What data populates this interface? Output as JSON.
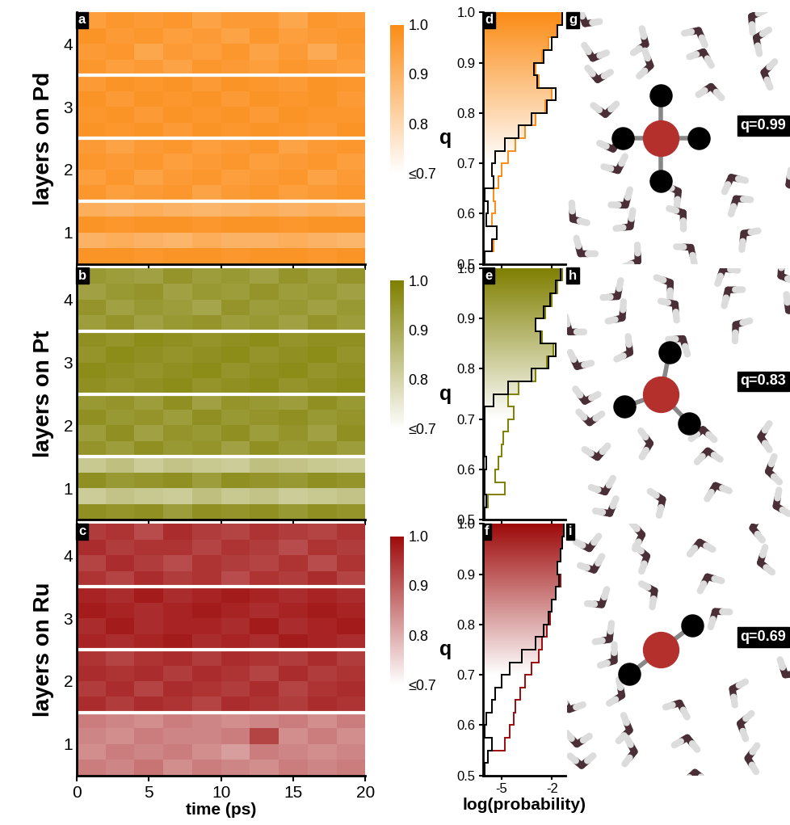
{
  "chart_data": [
    {
      "type": "heatmap",
      "panel": "a",
      "y_label": "layers on Pd",
      "color": "#fb8c16",
      "x_bins": [
        0,
        2,
        4,
        6,
        8,
        10,
        12,
        14,
        16,
        18,
        20
      ],
      "xlim": [
        0,
        20
      ],
      "xticks": [
        0,
        5,
        10,
        15,
        20
      ],
      "tick_labels": "y",
      "colorbar": {
        "range": [
          0.7,
          1.0
        ],
        "ticks": [
          {
            "value": 1.0,
            "label": "1.0"
          },
          {
            "value": 0.9,
            "label": "0.9"
          },
          {
            "value": 0.8,
            "label": "0.8"
          },
          {
            "value": 0.7,
            "label": "≤0.7"
          }
        ]
      },
      "layers": [
        {
          "label": "1",
          "cells": [
            [
              0.98,
              0.98,
              0.97,
              0.98,
              0.98,
              0.97,
              0.98,
              0.98,
              0.97,
              0.98
            ],
            [
              0.9,
              0.91,
              0.9,
              0.89,
              0.91,
              0.9,
              0.9,
              0.91,
              0.9,
              0.89
            ],
            [
              0.98,
              0.97,
              0.98,
              0.98,
              0.97,
              0.98,
              0.98,
              0.97,
              0.98,
              0.98
            ],
            [
              0.91,
              0.9,
              0.91,
              0.9,
              0.89,
              0.9,
              0.91,
              0.9,
              0.91,
              0.9
            ]
          ]
        },
        {
          "label": "2",
          "cells": [
            [
              0.97,
              0.95,
              0.96,
              0.97,
              0.94,
              0.96,
              0.97,
              0.95,
              0.96,
              0.97
            ],
            [
              0.95,
              0.97,
              0.94,
              0.96,
              0.97,
              0.95,
              0.96,
              0.97,
              0.94,
              0.96
            ],
            [
              0.97,
              0.96,
              0.97,
              0.95,
              0.96,
              0.97,
              0.95,
              0.96,
              0.97,
              0.95
            ],
            [
              0.96,
              0.94,
              0.96,
              0.97,
              0.95,
              0.96,
              0.97,
              0.94,
              0.96,
              0.97
            ]
          ]
        },
        {
          "label": "3",
          "cells": [
            [
              0.98,
              0.97,
              0.98,
              0.96,
              0.98,
              0.97,
              0.98,
              0.97,
              0.96,
              0.98
            ],
            [
              0.97,
              0.98,
              0.96,
              0.98,
              0.97,
              0.98,
              0.96,
              0.98,
              0.97,
              0.97
            ],
            [
              0.98,
              0.96,
              0.98,
              0.97,
              0.98,
              0.96,
              0.98,
              0.97,
              0.98,
              0.96
            ],
            [
              0.96,
              0.98,
              0.97,
              0.98,
              0.96,
              0.98,
              0.97,
              0.96,
              0.98,
              0.97
            ]
          ]
        },
        {
          "label": "4",
          "cells": [
            [
              0.97,
              0.95,
              0.96,
              0.94,
              0.97,
              0.96,
              0.95,
              0.97,
              0.96,
              0.95
            ],
            [
              0.96,
              0.97,
              0.93,
              0.96,
              0.95,
              0.97,
              0.94,
              0.96,
              0.92,
              0.96
            ],
            [
              0.98,
              0.96,
              0.97,
              0.95,
              0.96,
              0.94,
              0.97,
              0.95,
              0.96,
              0.97
            ],
            [
              0.95,
              0.97,
              0.96,
              0.97,
              0.94,
              0.96,
              0.96,
              0.93,
              0.97,
              0.96
            ]
          ]
        }
      ]
    },
    {
      "type": "heatmap",
      "panel": "b",
      "y_label": "layers on Pt",
      "color": "#7f7f00",
      "x_bins": [
        0,
        2,
        4,
        6,
        8,
        10,
        12,
        14,
        16,
        18,
        20
      ],
      "xlim": [
        0,
        20
      ],
      "xticks": [
        0,
        5,
        10,
        15,
        20
      ],
      "tick_labels": "y",
      "colorbar": {
        "range": [
          0.7,
          1.0
        ],
        "ticks": [
          {
            "value": 1.0,
            "label": "1.0"
          },
          {
            "value": 0.9,
            "label": "0.9"
          },
          {
            "value": 0.8,
            "label": "0.8"
          },
          {
            "value": 0.7,
            "label": "≤0.7"
          }
        ]
      },
      "layers": [
        {
          "label": "1",
          "cells": [
            [
              0.96,
              0.95,
              0.96,
              0.93,
              0.96,
              0.95,
              0.96,
              0.94,
              0.96,
              0.95
            ],
            [
              0.82,
              0.84,
              0.83,
              0.82,
              0.85,
              0.83,
              0.84,
              0.82,
              0.83,
              0.84
            ],
            [
              0.96,
              0.94,
              0.95,
              0.96,
              0.93,
              0.96,
              0.95,
              0.94,
              0.96,
              0.95
            ],
            [
              0.83,
              0.85,
              0.82,
              0.84,
              0.83,
              0.82,
              0.85,
              0.84,
              0.83,
              0.82
            ]
          ]
        },
        {
          "label": "2",
          "cells": [
            [
              0.95,
              0.93,
              0.96,
              0.94,
              0.95,
              0.92,
              0.96,
              0.94,
              0.95,
              0.93
            ],
            [
              0.93,
              0.96,
              0.92,
              0.95,
              0.94,
              0.96,
              0.93,
              0.95,
              0.92,
              0.96
            ],
            [
              0.96,
              0.94,
              0.95,
              0.93,
              0.96,
              0.94,
              0.95,
              0.96,
              0.94,
              0.95
            ],
            [
              0.94,
              0.95,
              0.93,
              0.96,
              0.92,
              0.95,
              0.94,
              0.93,
              0.96,
              0.94
            ]
          ]
        },
        {
          "label": "3",
          "cells": [
            [
              0.96,
              0.95,
              0.96,
              0.97,
              0.95,
              0.96,
              0.97,
              0.95,
              0.96,
              0.97
            ],
            [
              0.97,
              0.96,
              0.95,
              0.96,
              0.97,
              0.95,
              0.96,
              0.97,
              0.95,
              0.96
            ],
            [
              0.95,
              0.97,
              0.96,
              0.95,
              0.96,
              0.97,
              0.95,
              0.96,
              0.97,
              0.95
            ],
            [
              0.96,
              0.95,
              0.97,
              0.96,
              0.95,
              0.96,
              0.97,
              0.95,
              0.96,
              0.96
            ]
          ]
        },
        {
          "label": "4",
          "cells": [
            [
              0.93,
              0.95,
              0.92,
              0.94,
              0.95,
              0.93,
              0.94,
              0.92,
              0.95,
              0.93
            ],
            [
              0.95,
              0.92,
              0.94,
              0.93,
              0.91,
              0.95,
              0.93,
              0.94,
              0.92,
              0.94
            ],
            [
              0.92,
              0.94,
              0.95,
              0.92,
              0.94,
              0.93,
              0.95,
              0.93,
              0.94,
              0.92
            ],
            [
              0.94,
              0.93,
              0.92,
              0.95,
              0.93,
              0.94,
              0.92,
              0.95,
              0.93,
              0.95
            ]
          ]
        }
      ]
    },
    {
      "type": "heatmap",
      "panel": "c",
      "y_label": "layers on Ru",
      "x_label": "time (ps)",
      "color": "#9e0b0b",
      "x_bins": [
        0,
        2,
        4,
        6,
        8,
        10,
        12,
        14,
        16,
        18,
        20
      ],
      "xlim": [
        0,
        20
      ],
      "xticks": [
        0,
        5,
        10,
        15,
        20
      ],
      "colorbar": {
        "range": [
          0.7,
          1.0
        ],
        "ticks": [
          {
            "value": 1.0,
            "label": "1.0"
          },
          {
            "value": 0.9,
            "label": "0.9"
          },
          {
            "value": 0.8,
            "label": "0.8"
          },
          {
            "value": 0.7,
            "label": "≤0.7"
          }
        ]
      },
      "layers": [
        {
          "label": "1",
          "cells": [
            [
              0.86,
              0.85,
              0.87,
              0.84,
              0.86,
              0.85,
              0.84,
              0.86,
              0.85,
              0.86
            ],
            [
              0.84,
              0.86,
              0.85,
              0.86,
              0.84,
              0.82,
              0.86,
              0.85,
              0.84,
              0.85
            ],
            [
              0.85,
              0.84,
              0.86,
              0.85,
              0.85,
              0.86,
              0.93,
              0.84,
              0.86,
              0.84
            ],
            [
              0.86,
              0.85,
              0.84,
              0.86,
              0.85,
              0.84,
              0.85,
              0.86,
              0.84,
              0.86
            ]
          ]
        },
        {
          "label": "2",
          "cells": [
            [
              0.96,
              0.94,
              0.96,
              0.95,
              0.93,
              0.96,
              0.95,
              0.94,
              0.96,
              0.95
            ],
            [
              0.94,
              0.96,
              0.93,
              0.96,
              0.95,
              0.94,
              0.96,
              0.93,
              0.95,
              0.96
            ],
            [
              0.96,
              0.95,
              0.96,
              0.94,
              0.96,
              0.95,
              0.93,
              0.96,
              0.94,
              0.95
            ],
            [
              0.95,
              0.93,
              0.95,
              0.96,
              0.94,
              0.96,
              0.95,
              0.94,
              0.96,
              0.94
            ]
          ]
        },
        {
          "label": "3",
          "cells": [
            [
              0.97,
              0.96,
              0.97,
              0.98,
              0.96,
              0.97,
              0.96,
              0.98,
              0.97,
              0.96
            ],
            [
              0.96,
              0.98,
              0.96,
              0.97,
              0.97,
              0.96,
              0.98,
              0.96,
              0.97,
              0.98
            ],
            [
              0.98,
              0.97,
              0.96,
              0.97,
              0.98,
              0.97,
              0.96,
              0.97,
              0.98,
              0.97
            ],
            [
              0.97,
              0.96,
              0.98,
              0.96,
              0.97,
              0.98,
              0.97,
              0.96,
              0.97,
              0.96
            ]
          ]
        },
        {
          "label": "4",
          "cells": [
            [
              0.95,
              0.93,
              0.96,
              0.94,
              0.95,
              0.92,
              0.95,
              0.94,
              0.96,
              0.93
            ],
            [
              0.93,
              0.96,
              0.94,
              0.92,
              0.95,
              0.94,
              0.93,
              0.95,
              0.92,
              0.95
            ],
            [
              0.96,
              0.94,
              0.95,
              0.95,
              0.93,
              0.95,
              0.94,
              0.92,
              0.95,
              0.94
            ],
            [
              0.94,
              0.95,
              0.92,
              0.96,
              0.94,
              0.93,
              0.95,
              0.94,
              0.93,
              0.95
            ]
          ]
        }
      ]
    },
    {
      "type": "histogram",
      "panel": "d",
      "y_label": "q",
      "orientation": "horizontal",
      "tick_labels": "y",
      "bins": [
        0.5,
        0.525,
        0.55,
        0.575,
        0.6,
        0.625,
        0.65,
        0.675,
        0.7,
        0.725,
        0.75,
        0.775,
        0.8,
        0.825,
        0.85,
        0.875,
        0.9,
        0.925,
        0.95,
        0.975,
        1.0
      ],
      "ylim": [
        0.5,
        1.0
      ],
      "yticks": [
        0.5,
        0.6,
        0.7,
        0.8,
        0.9,
        {
          "value": 1.0,
          "label": "1.0"
        }
      ],
      "xlim": [
        -6.1,
        -1.2
      ],
      "xticks": [
        -5,
        -2
      ],
      "series": [
        {
          "type": "area",
          "color": "#fb8c16",
          "values": [
            -6.0,
            -5.5,
            -5.3,
            -5.6,
            -5.4,
            -5.5,
            -5.2,
            -5.0,
            -4.6,
            -4.2,
            -3.6,
            -3.0,
            -2.4,
            -2.0,
            -2.8,
            -3.0,
            -2.6,
            -2.2,
            -1.8,
            -1.5
          ]
        },
        {
          "type": "line",
          "color": "#000000",
          "values": [
            -6.0,
            -5.6,
            -5.3,
            -5.9,
            -5.8,
            -6.0,
            -5.5,
            -5.6,
            -5.4,
            -4.8,
            -4.0,
            -3.2,
            -2.3,
            -1.8,
            -2.9,
            -3.1,
            -2.5,
            -2.0,
            -1.7,
            -1.4
          ]
        }
      ]
    },
    {
      "type": "histogram",
      "panel": "e",
      "y_label": "q",
      "orientation": "horizontal",
      "tick_labels": "y",
      "bins": [
        0.5,
        0.525,
        0.55,
        0.575,
        0.6,
        0.625,
        0.65,
        0.675,
        0.7,
        0.725,
        0.75,
        0.775,
        0.8,
        0.825,
        0.85,
        0.875,
        0.9,
        0.925,
        0.95,
        0.975,
        1.0
      ],
      "ylim": [
        0.5,
        1.0
      ],
      "yticks": [
        0.5,
        0.6,
        0.7,
        0.8,
        0.9,
        {
          "value": 1.0,
          "label": "1.0"
        }
      ],
      "xlim": [
        -6.1,
        -1.2
      ],
      "xticks": [
        -5,
        -2
      ],
      "series": [
        {
          "type": "area",
          "color": "#7f7f00",
          "values": [
            -6.0,
            -5.8,
            -4.8,
            -5.4,
            -5.2,
            -5.0,
            -4.9,
            -4.6,
            -4.3,
            -4.6,
            -4.0,
            -3.0,
            -2.3,
            -1.9,
            -2.6,
            -3.0,
            -2.4,
            -2.0,
            -1.7,
            -1.4
          ]
        },
        {
          "type": "line",
          "color": "#000000",
          "values": [
            -6.0,
            -5.9,
            -6.0,
            -6.0,
            -5.9,
            -6.0,
            -6.0,
            -6.0,
            -6.0,
            -5.5,
            -4.6,
            -3.2,
            -2.2,
            -1.8,
            -2.7,
            -3.0,
            -2.5,
            -2.1,
            -1.8,
            -1.5
          ]
        }
      ]
    },
    {
      "type": "histogram",
      "panel": "f",
      "y_label": "q",
      "x_label": "log(probability)",
      "orientation": "horizontal",
      "bins": [
        0.5,
        0.525,
        0.55,
        0.575,
        0.6,
        0.625,
        0.65,
        0.675,
        0.7,
        0.725,
        0.75,
        0.775,
        0.8,
        0.825,
        0.85,
        0.875,
        0.9,
        0.925,
        0.95,
        0.975,
        1.0
      ],
      "ylim": [
        0.5,
        1.0
      ],
      "yticks": [
        0.5,
        0.6,
        0.7,
        0.8,
        0.9,
        {
          "value": 1.0,
          "label": "1.0"
        }
      ],
      "xlim": [
        -6.1,
        -1.2
      ],
      "xticks": [
        -5,
        -2
      ],
      "series": [
        {
          "type": "area",
          "color": "#9e0b0b",
          "values": [
            -6.0,
            -5.8,
            -4.8,
            -4.5,
            -4.3,
            -4.2,
            -3.9,
            -3.6,
            -3.2,
            -2.8,
            -2.6,
            -2.3,
            -2.1,
            -2.0,
            -1.8,
            -1.5,
            -1.7,
            -1.5,
            -1.4,
            -1.3
          ]
        },
        {
          "type": "line",
          "color": "#000000",
          "values": [
            -6.0,
            -5.8,
            -5.6,
            -6.0,
            -5.9,
            -5.6,
            -5.4,
            -5.0,
            -4.5,
            -3.8,
            -3.0,
            -2.5,
            -2.2,
            -2.0,
            -1.8,
            -1.6,
            -1.7,
            -1.5,
            -1.4,
            -1.3
          ]
        }
      ]
    }
  ],
  "molecule_panels": [
    {
      "panel": "g",
      "label": "q=0.99"
    },
    {
      "panel": "h",
      "label": "q=0.83"
    },
    {
      "panel": "i",
      "label": "q=0.69"
    }
  ]
}
